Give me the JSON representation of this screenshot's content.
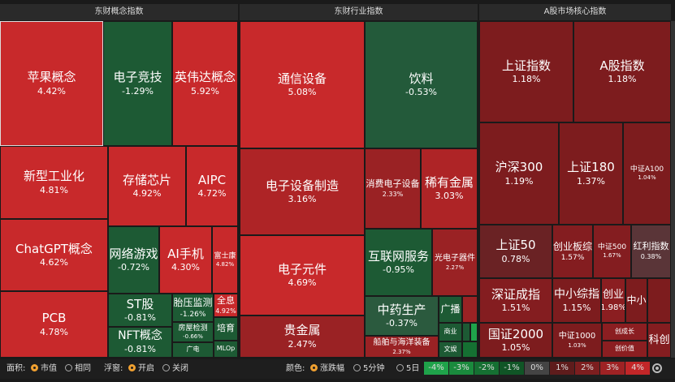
{
  "panels": [
    {
      "title": "东财概念指数",
      "tiles": [
        {
          "name": "苹果概念",
          "change": "4.42%",
          "color": "#c8292b"
        },
        {
          "name": "电子竞技",
          "change": "-1.29%",
          "color": "#1d5a34"
        },
        {
          "name": "英伟达概念",
          "change": "5.92%",
          "color": "#c8292b"
        },
        {
          "name": "新型工业化",
          "change": "4.81%",
          "color": "#c8292b"
        },
        {
          "name": "存储芯片",
          "change": "4.92%",
          "color": "#c8292b"
        },
        {
          "name": "AIPC",
          "change": "4.72%",
          "color": "#c8292b"
        },
        {
          "name": "ChatGPT概念",
          "change": "4.62%",
          "color": "#c8292b"
        },
        {
          "name": "网络游戏",
          "change": "-0.72%",
          "color": "#1d5a34"
        },
        {
          "name": "AI手机",
          "change": "4.30%",
          "color": "#c8292b"
        },
        {
          "name": "富士康",
          "change": "4.82%",
          "color": "#c8292b"
        },
        {
          "name": "PCB",
          "change": "4.78%",
          "color": "#c8292b"
        },
        {
          "name": "ST股",
          "change": "-0.81%",
          "color": "#1d5a34"
        },
        {
          "name": "NFT概念",
          "change": "-0.81%",
          "color": "#1d5a34"
        },
        {
          "name": "胎压监测",
          "change": "-1.26%",
          "color": "#1d5a34"
        },
        {
          "name": "房屋检测",
          "change": "-0.66%",
          "color": "#1d5a34"
        },
        {
          "name": "广电",
          "color": "#1d5a34"
        },
        {
          "name": "全息",
          "change": "4.92%",
          "color": "#c8292b"
        },
        {
          "name": "培育",
          "color": "#1d5a34"
        },
        {
          "name": "MLOp",
          "color": "#1d5a34"
        }
      ]
    },
    {
      "title": "东财行业指数",
      "tiles": [
        {
          "name": "通信设备",
          "change": "5.08%",
          "color": "#c8292b"
        },
        {
          "name": "饮料",
          "change": "-0.53%",
          "color": "#235a3a"
        },
        {
          "name": "电子设备制造",
          "change": "3.16%",
          "color": "#ae2426"
        },
        {
          "name": "消费电子设备",
          "change": "2.33%",
          "color": "#9a2224"
        },
        {
          "name": "稀有金属",
          "change": "3.03%",
          "color": "#ae2426"
        },
        {
          "name": "电子元件",
          "change": "4.69%",
          "color": "#c8292b"
        },
        {
          "name": "互联网服务",
          "change": "-0.95%",
          "color": "#1d5a34"
        },
        {
          "name": "光电子器件",
          "change": "2.27%",
          "color": "#9a2224"
        },
        {
          "name": "贵金属",
          "change": "2.47%",
          "color": "#9a2224"
        },
        {
          "name": "中药生产",
          "change": "-0.37%",
          "color": "#2b5a3e"
        },
        {
          "name": "船舶与海洋装备",
          "change": "2.37%",
          "color": "#9a2224"
        },
        {
          "name": "广播",
          "color": "#1d5a34"
        },
        {
          "name": "商业",
          "color": "#1d5a34"
        },
        {
          "name": "文娱",
          "color": "#1d5a34"
        }
      ]
    },
    {
      "title": "A股市场核心指数",
      "tiles": [
        {
          "name": "上证指数",
          "change": "1.18%",
          "color": "#7d1c1e"
        },
        {
          "name": "A股指数",
          "change": "1.18%",
          "color": "#7d1c1e"
        },
        {
          "name": "沪深300",
          "change": "1.19%",
          "color": "#7d1c1e"
        },
        {
          "name": "上证180",
          "change": "1.37%",
          "color": "#7d1c1e"
        },
        {
          "name": "中证A100",
          "change": "1.04%",
          "color": "#7d1c1e"
        },
        {
          "name": "上证50",
          "change": "0.78%",
          "color": "#6a2224"
        },
        {
          "name": "创业板综",
          "change": "1.57%",
          "color": "#841d20"
        },
        {
          "name": "中证500",
          "change": "1.67%",
          "color": "#841d20"
        },
        {
          "name": "红利指数",
          "change": "0.38%",
          "color": "#5a3538"
        },
        {
          "name": "深证成指",
          "change": "1.51%",
          "color": "#841d20"
        },
        {
          "name": "中小综指",
          "change": "1.15%",
          "color": "#7d1c1e"
        },
        {
          "name": "创业",
          "change": "1.98%",
          "color": "#8b1e21"
        },
        {
          "name": "中小",
          "color": "#7d1c1e"
        },
        {
          "name": "国证2000",
          "change": "1.05%",
          "color": "#7d1c1e"
        },
        {
          "name": "中证1000",
          "change": "1.03%",
          "color": "#7d1c1e"
        },
        {
          "name": "创成长",
          "color": "#8b1e21"
        },
        {
          "name": "创价值",
          "color": "#8b1e21"
        },
        {
          "name": "科创",
          "color": "#841d20"
        }
      ]
    }
  ],
  "footer": {
    "area_label": "面积:",
    "area_options": [
      "市值",
      "相同"
    ],
    "float_label": "浮窗:",
    "float_options": [
      "开启",
      "关闭"
    ],
    "color_label": "颜色:",
    "color_options": [
      "涨跌幅",
      "5分钟",
      "5日"
    ],
    "legend": [
      {
        "label": "-4%",
        "color": "#1fa34a"
      },
      {
        "label": "-3%",
        "color": "#1a8a3d"
      },
      {
        "label": "-2%",
        "color": "#157032"
      },
      {
        "label": "-1%",
        "color": "#105526"
      },
      {
        "label": "0%",
        "color": "#444444"
      },
      {
        "label": "1%",
        "color": "#5e1c1c"
      },
      {
        "label": "2%",
        "color": "#7c1e1f"
      },
      {
        "label": "3%",
        "color": "#9e2224"
      },
      {
        "label": "4%",
        "color": "#c22628"
      }
    ]
  }
}
